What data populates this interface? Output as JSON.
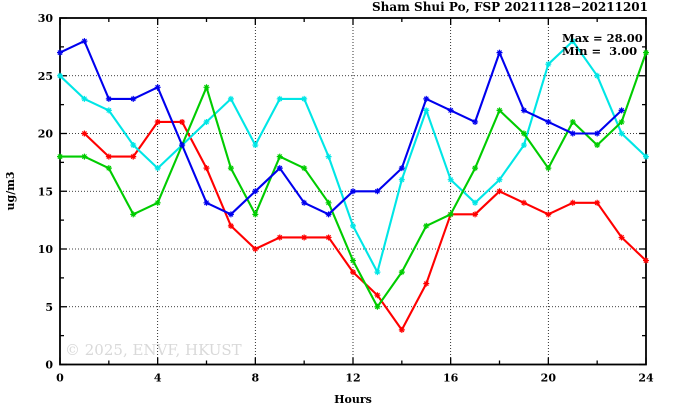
{
  "title": "Sham Shui Po, FSP 20211128−20211201",
  "annotation": {
    "max_label": "Max = 28.00",
    "min_label": "Min =  3.00"
  },
  "watermark": "© 2025, ENVF, HKUST",
  "chart_data": {
    "type": "line",
    "title": "Sham Shui Po, FSP 20211128−20211201",
    "xlabel": "Hours",
    "ylabel": "ug/m3",
    "xlim": [
      0,
      24
    ],
    "ylim": [
      0,
      30
    ],
    "x_major_ticks": [
      0,
      4,
      8,
      12,
      16,
      20,
      24
    ],
    "x_minor_step": 2,
    "y_major_ticks": [
      0,
      5,
      10,
      15,
      20,
      25,
      30
    ],
    "y_minor_step": 2.5,
    "grid": "dotted black gridlines at major ticks, mirrored inward ticks on all four borders",
    "legend_position": "none",
    "marker": "asterisk-star",
    "x": [
      0,
      1,
      2,
      3,
      4,
      5,
      6,
      7,
      8,
      9,
      10,
      11,
      12,
      13,
      14,
      15,
      16,
      17,
      18,
      19,
      20,
      21,
      22,
      23,
      24
    ],
    "series": [
      {
        "name": "red",
        "color": "#ff0000",
        "values": [
          null,
          20,
          18,
          18,
          21,
          21,
          17,
          12,
          10,
          11,
          11,
          11,
          8,
          6,
          3,
          7,
          13,
          13,
          15,
          14,
          13,
          14,
          14,
          11,
          9
        ]
      },
      {
        "name": "cyan",
        "color": "#00e6e6",
        "values": [
          25,
          23,
          22,
          19,
          17,
          19,
          21,
          23,
          19,
          23,
          23,
          18,
          12,
          8,
          16,
          22,
          16,
          14,
          16,
          19,
          26,
          28,
          25,
          20,
          18
        ]
      },
      {
        "name": "green",
        "color": "#00cc00",
        "values": [
          18,
          18,
          17,
          13,
          14,
          19,
          24,
          17,
          13,
          18,
          17,
          14,
          9,
          5,
          8,
          12,
          13,
          17,
          22,
          20,
          17,
          21,
          19,
          21,
          27
        ]
      },
      {
        "name": "blue",
        "color": "#0000ee",
        "values": [
          27,
          28,
          23,
          23,
          24,
          19,
          14,
          13,
          15,
          17,
          14,
          13,
          15,
          15,
          17,
          23,
          22,
          21,
          27,
          22,
          21,
          20,
          20,
          22,
          null
        ]
      }
    ],
    "annotations": [
      "Max = 28.00",
      "Min =  3.00"
    ],
    "max_value": 28.0,
    "min_value": 3.0
  }
}
